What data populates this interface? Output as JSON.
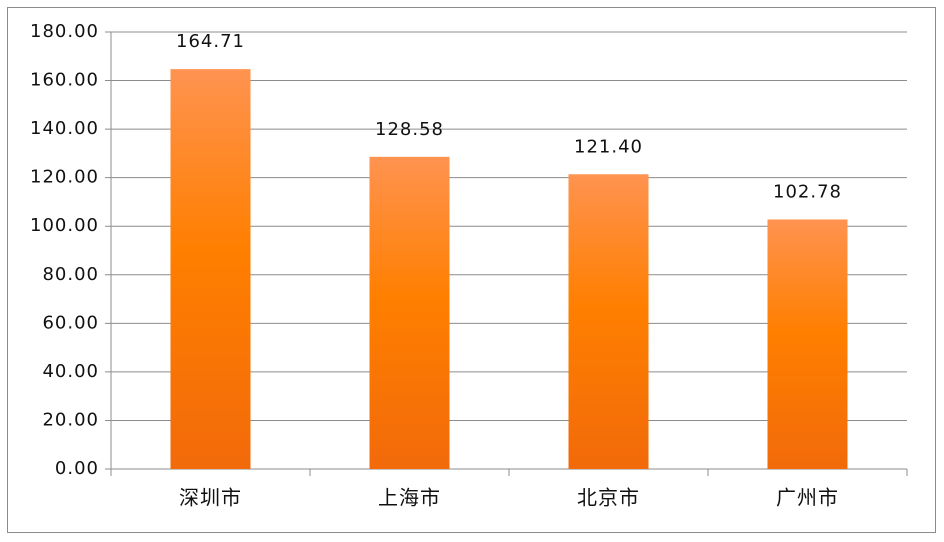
{
  "chart_data": {
    "type": "bar",
    "categories": [
      "深圳市",
      "上海市",
      "北京市",
      "广州市"
    ],
    "values": [
      164.71,
      128.58,
      121.4,
      102.78
    ],
    "value_labels": [
      "164.71",
      "128.58",
      "121.40",
      "102.78"
    ],
    "color": "#ff7f00",
    "ylim": [
      0,
      180
    ],
    "yticks": [
      {
        "value": 0,
        "label": "0.00"
      },
      {
        "value": 20,
        "label": "20.00"
      },
      {
        "value": 40,
        "label": "40.00"
      },
      {
        "value": 60,
        "label": "60.00"
      },
      {
        "value": 80,
        "label": "80.00"
      },
      {
        "value": 100,
        "label": "100.00"
      },
      {
        "value": 120,
        "label": "120.00"
      },
      {
        "value": 140,
        "label": "140.00"
      },
      {
        "value": 160,
        "label": "160.00"
      },
      {
        "value": 180,
        "label": "180.00"
      }
    ],
    "grid": true
  }
}
